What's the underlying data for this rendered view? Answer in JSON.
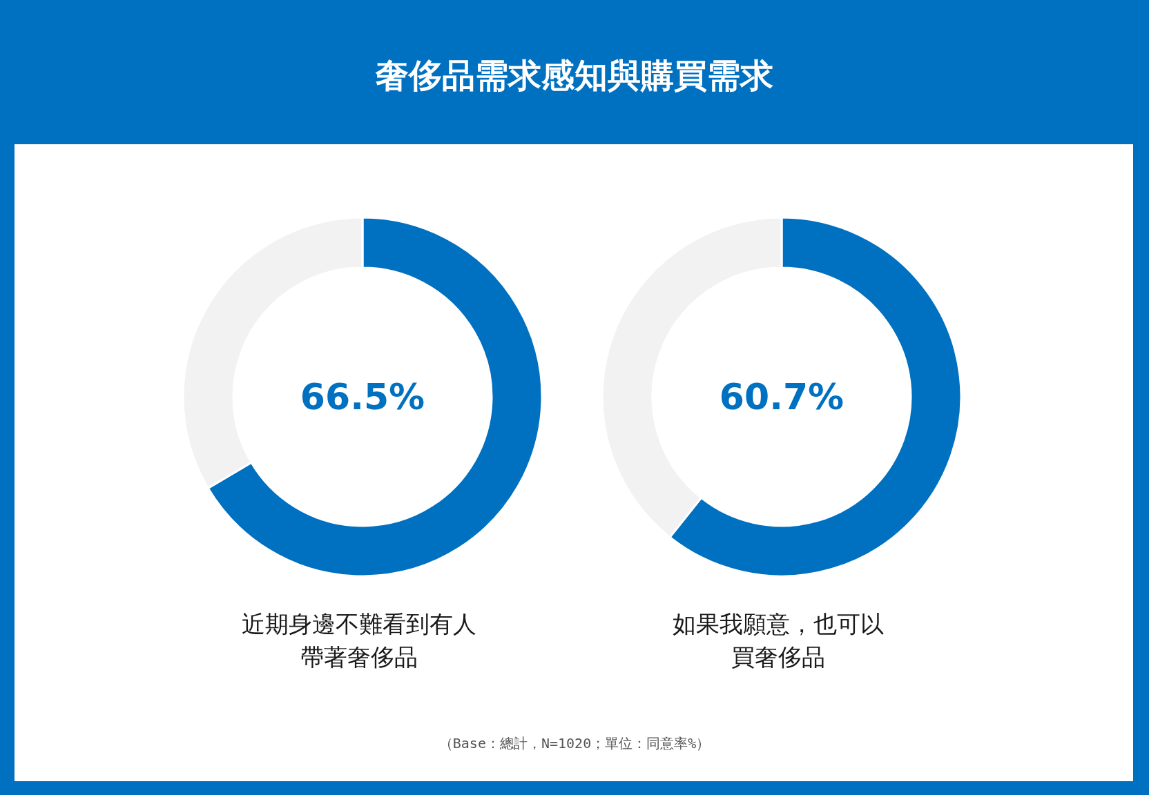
{
  "chart_data": [
    {
      "type": "donut",
      "title": "奢侈品需求感知與購買需求",
      "categories": [
        "近期身邊不難看到有人帶著奢侈品",
        null
      ],
      "values": [
        66.5,
        33.5
      ],
      "colors": [
        "#0070c0",
        "#f2f2f2"
      ],
      "value_labels": [
        "66.5%",
        null
      ]
    },
    {
      "type": "donut",
      "categories": [
        "如果我願意，也可以買奢侈品",
        null
      ],
      "values": [
        60.7,
        39.3
      ],
      "colors": [
        "#0070c0",
        "#f2f2f2"
      ],
      "value_labels": [
        "60.7%",
        null
      ],
      "annotations": [
        "（Base：總計，N=1020；單位：同意率%）"
      ]
    }
  ]
}
